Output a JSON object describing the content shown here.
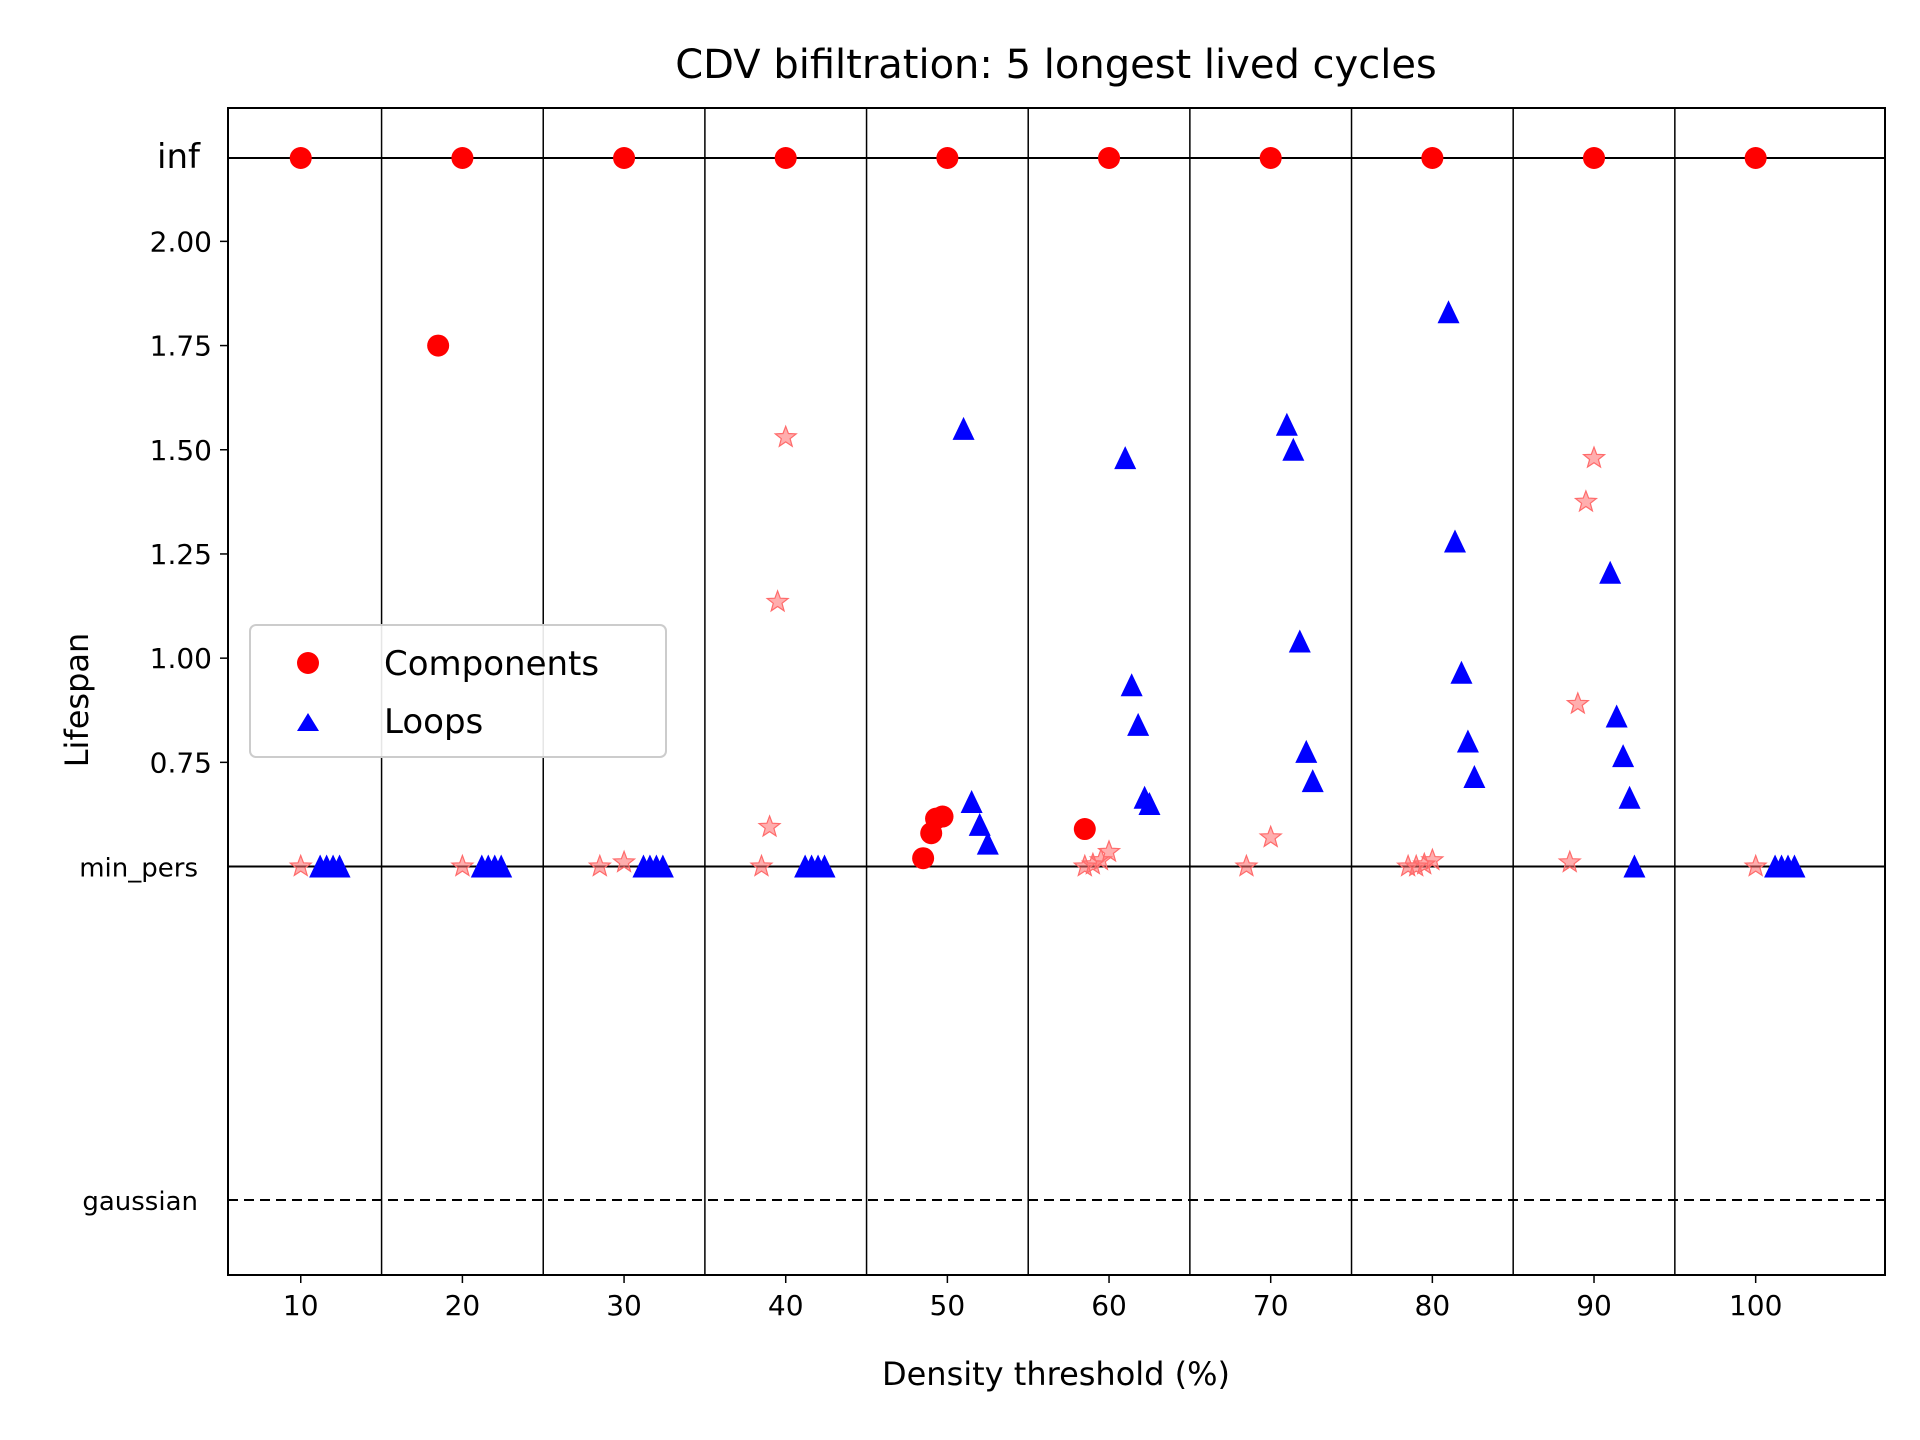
{
  "chart_data": {
    "type": "scatter",
    "title": "CDV bifiltration: 5 longest lived cycles",
    "xlabel": "Density threshold (%)",
    "ylabel": "Lifespan",
    "xlim": [
      5.5,
      108
    ],
    "ylim": [
      -0.48,
      2.32
    ],
    "xticks": [
      10,
      20,
      30,
      40,
      50,
      60,
      70,
      80,
      90,
      100
    ],
    "yticks": [
      {
        "value": 0.75,
        "label": "0.75"
      },
      {
        "value": 1.0,
        "label": "1.00"
      },
      {
        "value": 1.25,
        "label": "1.25"
      },
      {
        "value": 1.5,
        "label": "1.50"
      },
      {
        "value": 1.75,
        "label": "1.75"
      },
      {
        "value": 2.0,
        "label": "2.00"
      }
    ],
    "special_levels": {
      "inf": {
        "label": "inf",
        "value": 2.2
      },
      "min_pers": {
        "label": "min_pers",
        "value": 0.5
      },
      "gaussian": {
        "label": "gaussian",
        "value": -0.3
      }
    },
    "separators": [
      15,
      25,
      35,
      45,
      55,
      65,
      75,
      85,
      95
    ],
    "legend": {
      "position": "center-left",
      "entries": [
        "Components",
        "Loops"
      ]
    },
    "colors": {
      "components": "#ff0000",
      "loops": "#0000ff",
      "stars": "#ff6b6b"
    },
    "series": [
      {
        "name": "Components",
        "marker": "circle",
        "points": [
          [
            10,
            2.2
          ],
          [
            20,
            2.2
          ],
          [
            30,
            2.2
          ],
          [
            40,
            2.2
          ],
          [
            50,
            2.2
          ],
          [
            60,
            2.2
          ],
          [
            70,
            2.2
          ],
          [
            80,
            2.2
          ],
          [
            90,
            2.2
          ],
          [
            100,
            2.2
          ],
          [
            18.5,
            1.75
          ],
          [
            48.5,
            0.52
          ],
          [
            49.0,
            0.58
          ],
          [
            49.3,
            0.615
          ],
          [
            49.7,
            0.62
          ],
          [
            58.5,
            0.59
          ]
        ]
      },
      {
        "name": "Loops",
        "marker": "triangle",
        "points": [
          [
            11.2,
            0.5
          ],
          [
            11.6,
            0.5
          ],
          [
            12.0,
            0.5
          ],
          [
            12.4,
            0.5
          ],
          [
            21.2,
            0.5
          ],
          [
            21.6,
            0.5
          ],
          [
            22.0,
            0.5
          ],
          [
            22.4,
            0.5
          ],
          [
            31.2,
            0.5
          ],
          [
            31.6,
            0.5
          ],
          [
            32.0,
            0.5
          ],
          [
            32.4,
            0.5
          ],
          [
            41.2,
            0.5
          ],
          [
            41.6,
            0.5
          ],
          [
            42.0,
            0.5
          ],
          [
            42.4,
            0.5
          ],
          [
            51.0,
            1.55
          ],
          [
            51.5,
            0.655
          ],
          [
            52.0,
            0.6
          ],
          [
            52.5,
            0.555
          ],
          [
            61.0,
            1.48
          ],
          [
            61.4,
            0.935
          ],
          [
            61.8,
            0.84
          ],
          [
            62.2,
            0.665
          ],
          [
            62.5,
            0.65
          ],
          [
            71.0,
            1.56
          ],
          [
            71.4,
            1.5
          ],
          [
            71.8,
            1.04
          ],
          [
            72.2,
            0.775
          ],
          [
            72.6,
            0.705
          ],
          [
            81.0,
            1.83
          ],
          [
            81.4,
            1.28
          ],
          [
            81.8,
            0.965
          ],
          [
            82.2,
            0.8
          ],
          [
            82.6,
            0.715
          ],
          [
            91.0,
            1.205
          ],
          [
            91.4,
            0.86
          ],
          [
            91.8,
            0.765
          ],
          [
            92.2,
            0.665
          ],
          [
            92.5,
            0.5
          ],
          [
            101.2,
            0.5
          ],
          [
            101.6,
            0.5
          ],
          [
            102.0,
            0.5
          ],
          [
            102.4,
            0.5
          ]
        ]
      },
      {
        "name": "stars",
        "marker": "star",
        "points": [
          [
            10,
            0.5
          ],
          [
            20,
            0.5
          ],
          [
            28.5,
            0.5
          ],
          [
            30,
            0.51
          ],
          [
            38.5,
            0.5
          ],
          [
            39.0,
            0.595
          ],
          [
            39.5,
            1.135
          ],
          [
            40.0,
            1.53
          ],
          [
            58.5,
            0.5
          ],
          [
            59.0,
            0.505
          ],
          [
            59.5,
            0.515
          ],
          [
            60.0,
            0.535
          ],
          [
            68.5,
            0.5
          ],
          [
            70.0,
            0.57
          ],
          [
            78.5,
            0.5
          ],
          [
            79.0,
            0.5
          ],
          [
            79.5,
            0.505
          ],
          [
            80.0,
            0.515
          ],
          [
            88.5,
            0.51
          ],
          [
            89.0,
            0.89
          ],
          [
            89.5,
            1.375
          ],
          [
            90.0,
            1.48
          ],
          [
            100,
            0.5
          ]
        ]
      }
    ]
  }
}
